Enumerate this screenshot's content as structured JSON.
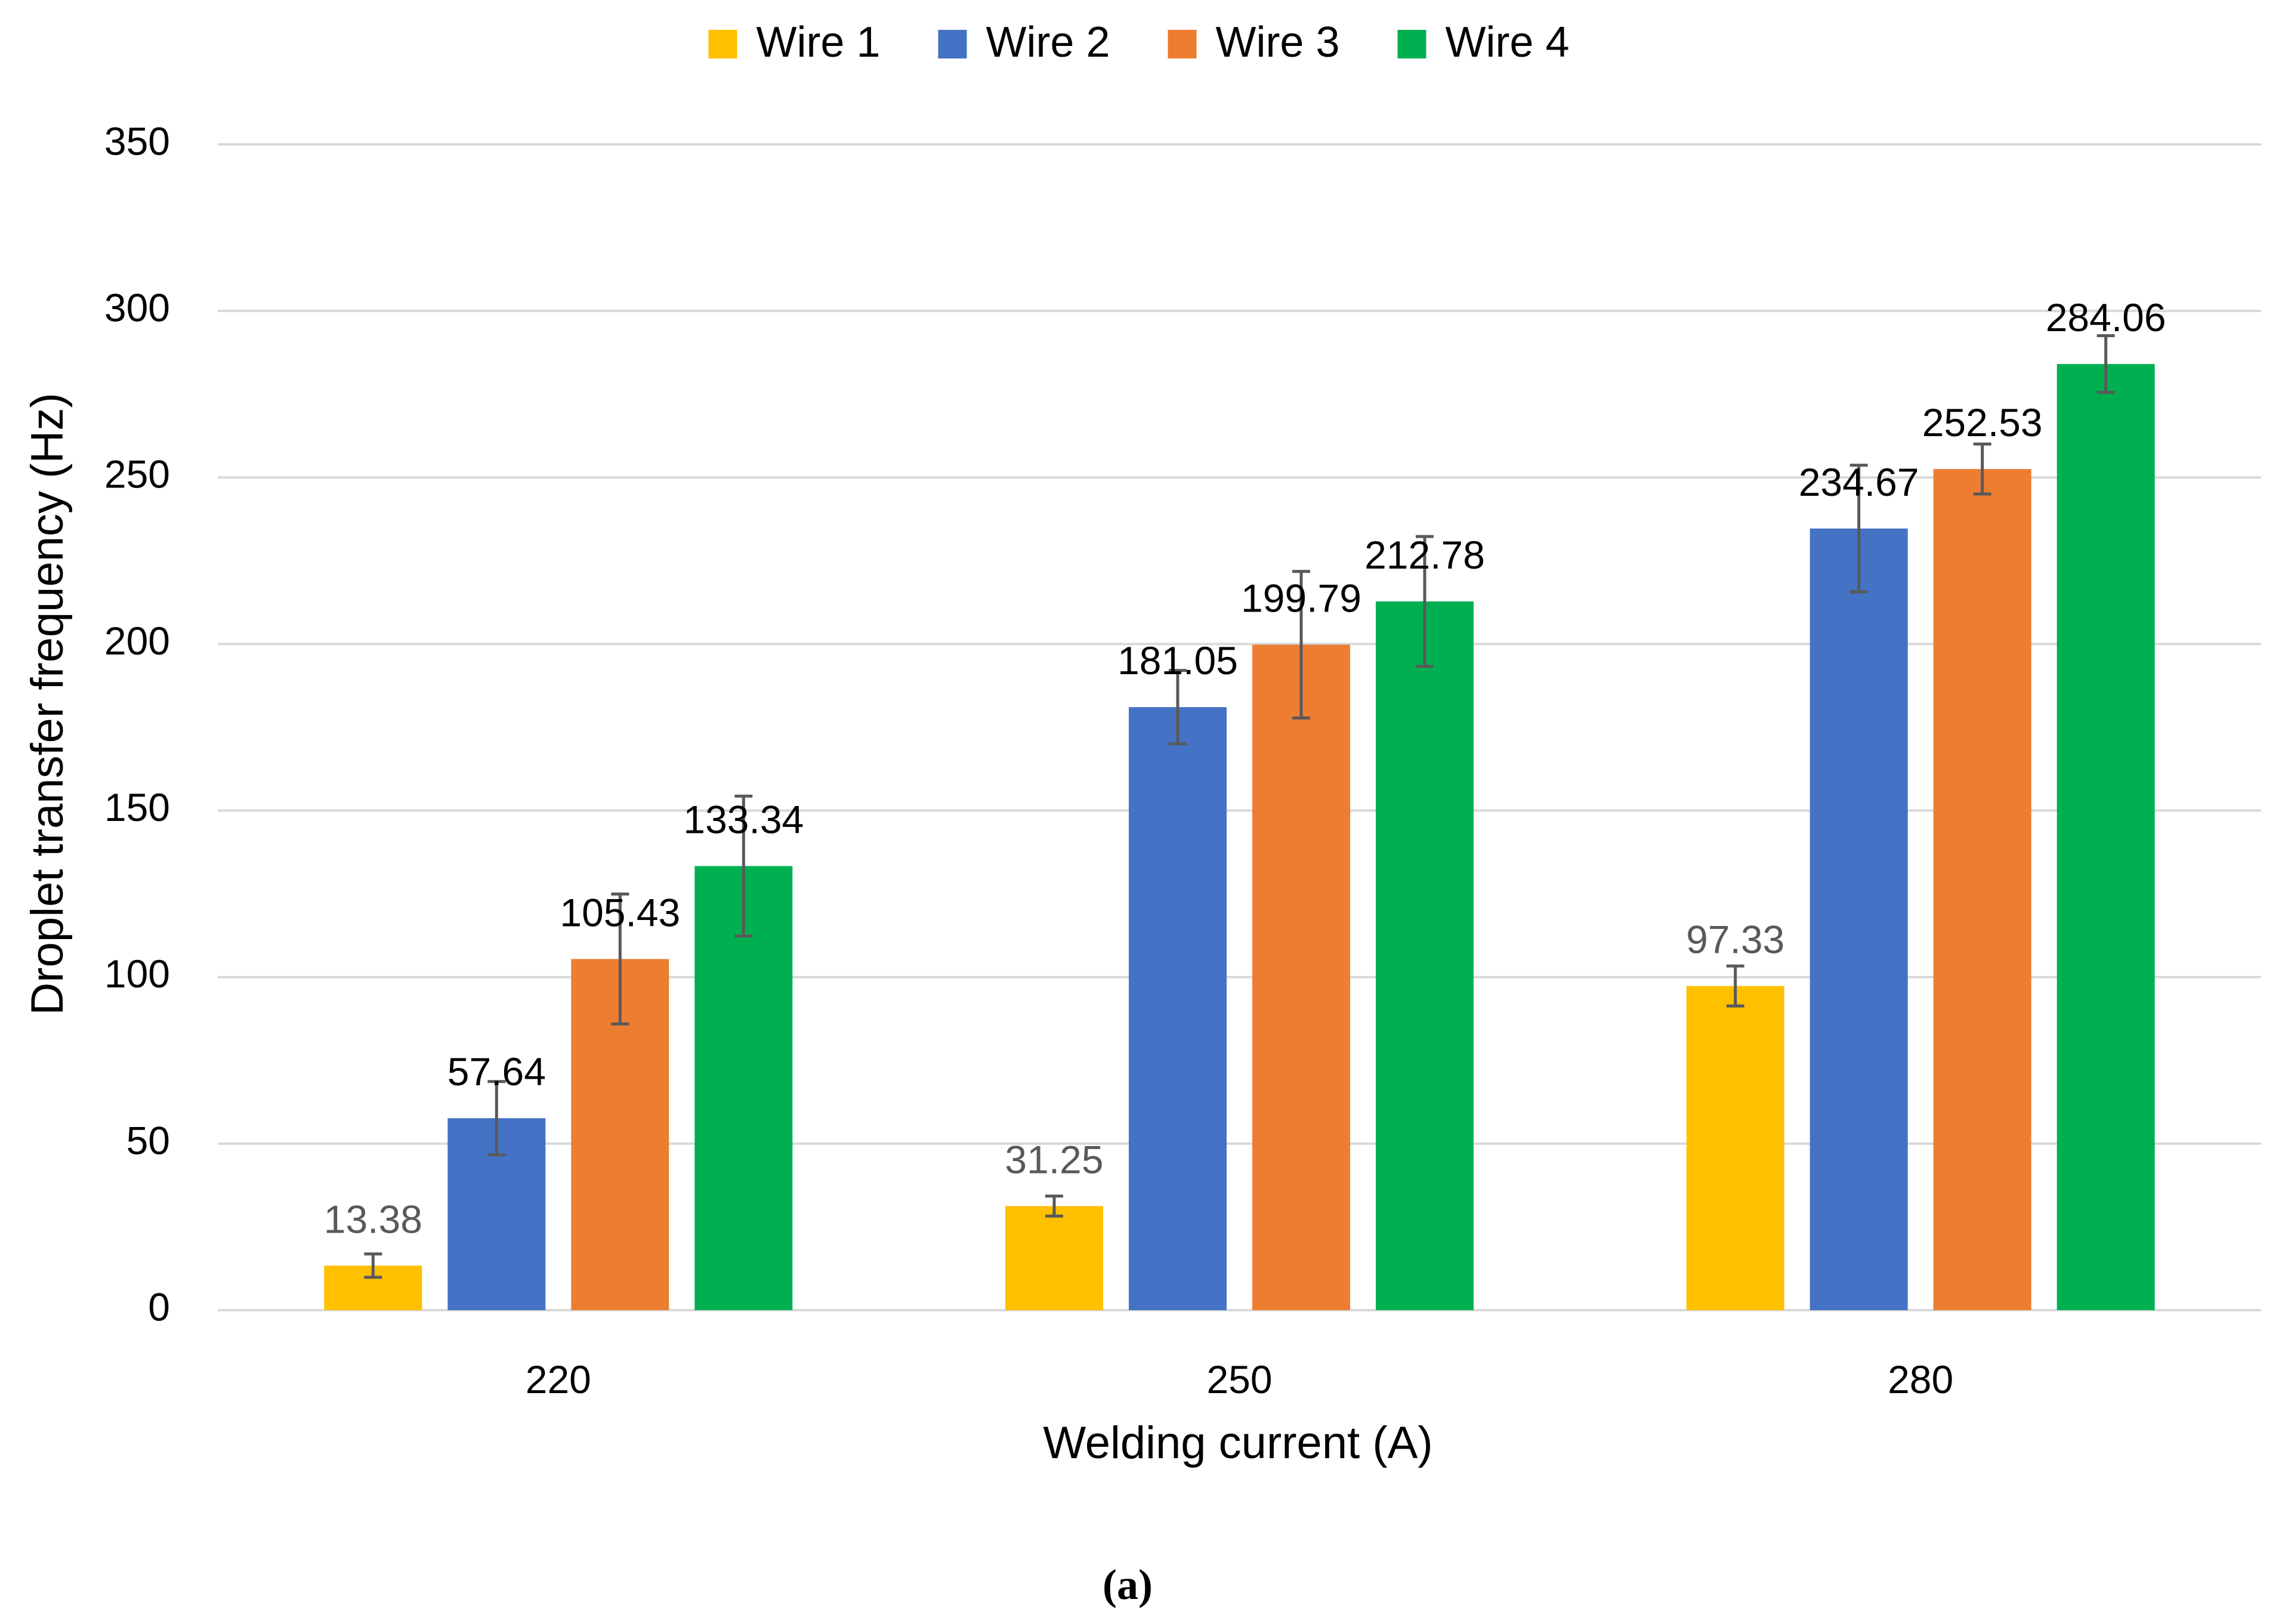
{
  "chart_data": {
    "type": "bar",
    "title": "",
    "xlabel": "Welding current (A)",
    "ylabel": "Droplet transfer frequency (Hz)",
    "categories": [
      "220",
      "250",
      "280"
    ],
    "ylim": [
      0,
      350
    ],
    "yticks": [
      0,
      50,
      100,
      150,
      200,
      250,
      300,
      350
    ],
    "grid": true,
    "legend_position": "top-center",
    "series": [
      {
        "name": "Wire 1",
        "color": "#FFC000",
        "label_color": "#595959",
        "values": [
          13.38,
          31.25,
          97.33
        ],
        "errors": [
          3.5,
          3.0,
          6.0
        ]
      },
      {
        "name": "Wire 2",
        "color": "#4472C4",
        "label_color": "#000000",
        "values": [
          57.64,
          181.05,
          234.67
        ],
        "errors": [
          11.0,
          11.0,
          19.0
        ]
      },
      {
        "name": "Wire 3",
        "color": "#ED7D31",
        "label_color": "#000000",
        "values": [
          105.43,
          199.79,
          252.53
        ],
        "errors": [
          19.5,
          22.0,
          7.5
        ]
      },
      {
        "name": "Wire 4",
        "color": "#00B050",
        "label_color": "#000000",
        "values": [
          133.34,
          212.78,
          284.06
        ],
        "errors": [
          21.0,
          19.5,
          8.5
        ]
      }
    ]
  },
  "caption": "(a)",
  "colors": {
    "grid": "#D9D9D9",
    "error_bar": "#595959"
  }
}
